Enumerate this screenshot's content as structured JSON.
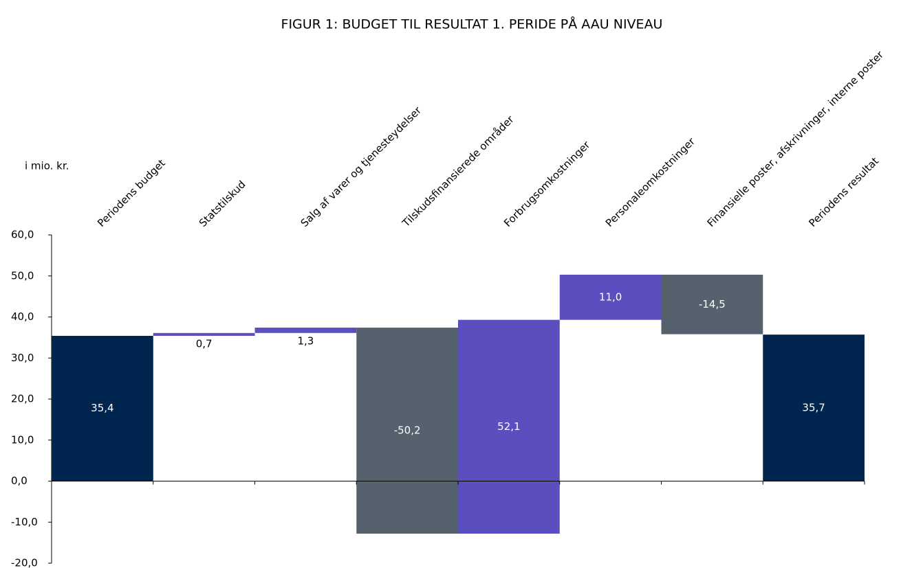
{
  "chart_data": {
    "type": "waterfall",
    "title": "FIGUR 1: BUDGET TIL RESULTAT 1. PERIDE PÅ AAU NIVEAU",
    "y_label": "i mio. kr.",
    "categories": [
      "Periodens budget",
      "Statstilskud",
      "Salg af varer og tjenesteydelser",
      "Tilskudsfinansierede områder",
      "Forbrugsomkostninger",
      "Personaleomkostninger",
      "Finansielle poster, afskrivninger, interne poster",
      "Periodens resultat"
    ],
    "values": [
      35.4,
      0.7,
      1.3,
      -50.2,
      52.1,
      11.0,
      -14.5,
      35.7
    ],
    "value_labels": [
      "35,4",
      "0,7",
      "1,3",
      "-50,2",
      "52,1",
      "11,0",
      "-14,5",
      "35,7"
    ],
    "measures": [
      "total",
      "relative",
      "relative",
      "relative",
      "relative",
      "relative",
      "relative",
      "total"
    ],
    "colors": {
      "total": "#002650",
      "increase": "#5b4fbf",
      "decrease": "#56616e"
    },
    "ylim": [
      -20,
      60
    ],
    "yticks": [
      {
        "value": -20,
        "label": "-20,0"
      },
      {
        "value": -10,
        "label": "-10,0"
      },
      {
        "value": 0,
        "label": "0,0"
      },
      {
        "value": 10,
        "label": "10,0"
      },
      {
        "value": 20,
        "label": "20,0"
      },
      {
        "value": 30,
        "label": "30,0"
      },
      {
        "value": 40,
        "label": "40,0"
      },
      {
        "value": 50,
        "label": "50,0"
      },
      {
        "value": 60,
        "label": "60,0"
      }
    ]
  }
}
